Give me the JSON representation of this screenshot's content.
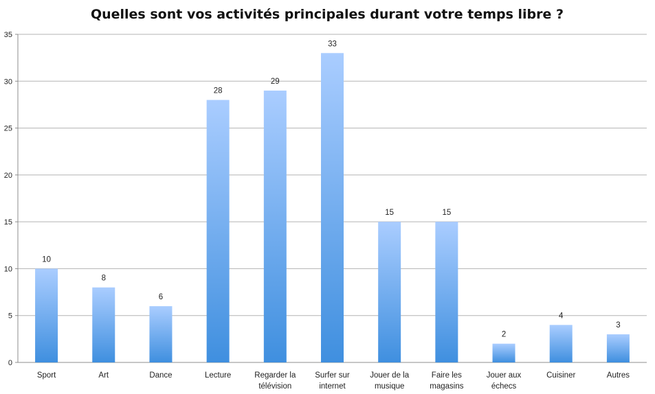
{
  "chart_data": {
    "type": "bar",
    "title": "Quelles sont vos activités principales durant votre temps libre ?",
    "xlabel": "",
    "ylabel": "",
    "categories": [
      [
        "Sport"
      ],
      [
        "Art"
      ],
      [
        "Dance"
      ],
      [
        "Lecture"
      ],
      [
        "Regarder la",
        "télévision"
      ],
      [
        "Surfer sur",
        "internet"
      ],
      [
        "Jouer de la",
        "musique"
      ],
      [
        "Faire les",
        "magasins"
      ],
      [
        "Jouer aux",
        "échecs"
      ],
      [
        "Cuisiner"
      ],
      [
        "Autres"
      ]
    ],
    "values": [
      10,
      8,
      6,
      28,
      29,
      33,
      15,
      15,
      2,
      4,
      3
    ],
    "ylim": [
      0,
      35
    ],
    "yticks": [
      0,
      5,
      10,
      15,
      20,
      25,
      30,
      35
    ],
    "grid": true,
    "legend": "none",
    "data_labels": true,
    "colors": {
      "bar_top": "#aacdff",
      "bar_bottom": "#3f8fdf",
      "grid": "#b3b3b3",
      "axis": "#8c8c8c",
      "text": "#222222"
    }
  }
}
